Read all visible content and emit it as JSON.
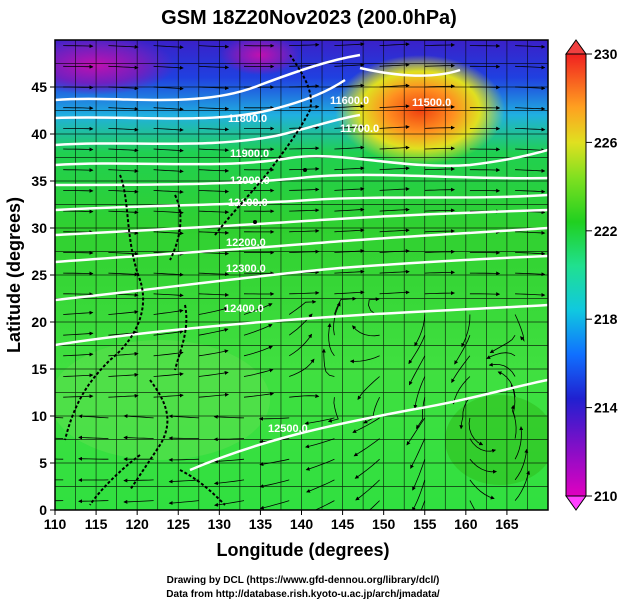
{
  "title": "GSM 18Z20Nov2023 (200.0hPa)",
  "xlabel": "Longitude (degrees)",
  "ylabel": "Latitude  (degrees)",
  "x_ticks": [
    "110",
    "115",
    "120",
    "125",
    "130",
    "135",
    "140",
    "145",
    "150",
    "155",
    "160",
    "165"
  ],
  "y_ticks": [
    "0",
    "5",
    "10",
    "15",
    "20",
    "25",
    "30",
    "35",
    "40",
    "45"
  ],
  "colorbar": {
    "ticks": [
      "210",
      "214",
      "218",
      "222",
      "226",
      "230"
    ]
  },
  "contour_labels": [
    "11500.0",
    "11600.0",
    "11700.0",
    "11800.0",
    "11900.0",
    "12000.0",
    "12100.0",
    "12200.0",
    "12300.0",
    "12400.0",
    "12500.0"
  ],
  "credits": {
    "line1": "Drawing by DCL (https://www.gfd-dennou.org/library/dcl/)",
    "line2": "Data from http://database.rish.kyoto-u.ac.jp/arch/jmadata/"
  },
  "chart_data": {
    "type": "heatmap",
    "title": "GSM 18Z20Nov2023 (200.0hPa)",
    "xlabel": "Longitude (degrees)",
    "ylabel": "Latitude  (degrees)",
    "xlim": [
      110,
      170
    ],
    "ylim": [
      0,
      50
    ],
    "colorbar_range": [
      210,
      230
    ],
    "colorbar_ticks": [
      210,
      214,
      218,
      222,
      226,
      230
    ],
    "overlays": [
      "height contours (white)",
      "streamlines (black)",
      "coastlines",
      "lat/lon grid"
    ],
    "contour_levels": [
      11500,
      11600,
      11700,
      11800,
      11900,
      12000,
      12100,
      12200,
      12300,
      12400,
      12500
    ]
  }
}
